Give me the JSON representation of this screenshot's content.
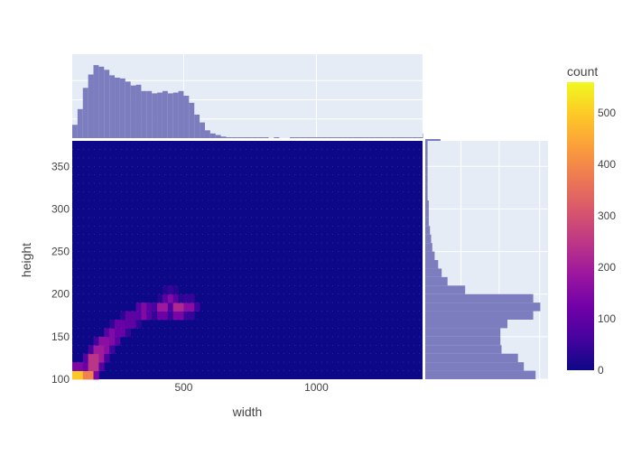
{
  "chart_data": {
    "type": "heatmap",
    "subtype": "density_heatmap_with_marginal_histograms",
    "xlabel": "width",
    "ylabel": "height",
    "x_ticks": [
      500,
      1000
    ],
    "y_ticks": [
      100,
      150,
      200,
      250,
      300,
      350
    ],
    "xlim": [
      80,
      1400
    ],
    "ylim": [
      100,
      380
    ],
    "colorbar": {
      "title": "count",
      "range": [
        0,
        560
      ],
      "ticks": [
        0,
        100,
        200,
        300,
        400,
        500
      ],
      "colorscale": [
        "#0d0887",
        "#46039f",
        "#7201a8",
        "#9c179e",
        "#bd3786",
        "#d8576b",
        "#ed7953",
        "#fb9f3a",
        "#fdca26",
        "#f0f921"
      ]
    },
    "colors": {
      "histogram": "#7c7dbf",
      "plot_bg": "#e5ecf6",
      "heatmap_bg": "#0d0887"
    },
    "hot_spots": [
      {
        "x": 100,
        "y": 105,
        "count": 560
      },
      {
        "x": 140,
        "y": 105,
        "count": 440
      },
      {
        "x": 160,
        "y": 120,
        "count": 380
      },
      {
        "x": 180,
        "y": 130,
        "count": 300
      },
      {
        "x": 200,
        "y": 140,
        "count": 250
      },
      {
        "x": 230,
        "y": 150,
        "count": 200
      },
      {
        "x": 260,
        "y": 160,
        "count": 170
      },
      {
        "x": 300,
        "y": 170,
        "count": 150
      },
      {
        "x": 350,
        "y": 180,
        "count": 200
      },
      {
        "x": 420,
        "y": 182,
        "count": 240
      },
      {
        "x": 480,
        "y": 182,
        "count": 280
      },
      {
        "x": 520,
        "y": 185,
        "count": 180
      },
      {
        "x": 450,
        "y": 195,
        "count": 150
      }
    ],
    "top_histogram": {
      "bin_start": 80,
      "bin_width": 20,
      "counts": [
        0.17,
        0.37,
        0.64,
        0.81,
        0.93,
        0.91,
        0.87,
        0.8,
        0.77,
        0.76,
        0.72,
        0.67,
        0.68,
        0.6,
        0.6,
        0.57,
        0.58,
        0.6,
        0.57,
        0.58,
        0.6,
        0.54,
        0.45,
        0.3,
        0.2,
        0.1,
        0.06,
        0.04,
        0.02,
        0.01,
        0.01,
        0.005,
        0.005,
        0.005,
        0.005,
        0.005,
        0.005,
        0,
        0.005,
        0,
        0,
        0.005,
        0.005,
        0.005,
        0.005,
        0.005,
        0.005,
        0.005,
        0.005,
        0.005,
        0.005,
        0.005,
        0.005,
        0.005,
        0.005,
        0.005,
        0.005,
        0.005,
        0.005,
        0.005,
        0.005,
        0.005,
        0.005,
        0.005,
        0.005,
        0.005,
        0.06
      ]
    },
    "right_histogram": {
      "bin_start": 100,
      "bin_width": 10,
      "counts": [
        0.94,
        0.84,
        0.79,
        0.65,
        0.64,
        0.64,
        0.7,
        0.92,
        0.98,
        0.92,
        0.34,
        0.19,
        0.14,
        0.11,
        0.08,
        0.06,
        0.05,
        0.04,
        0.03,
        0.03,
        0.03,
        0.02,
        0.02,
        0.02,
        0.02,
        0.02,
        0.02,
        0.02,
        0.13
      ]
    }
  }
}
